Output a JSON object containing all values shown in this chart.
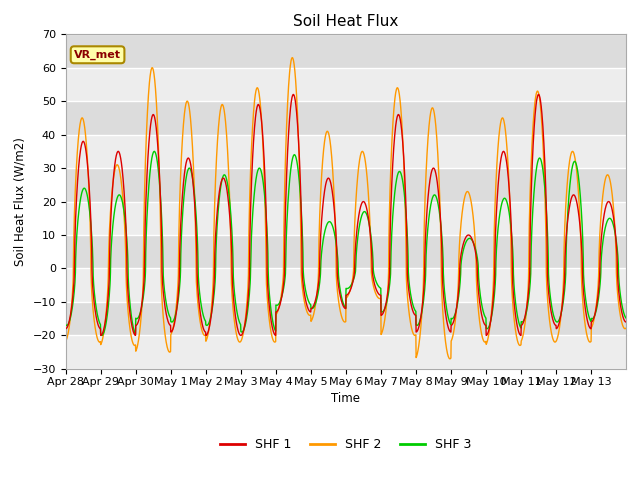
{
  "title": "Soil Heat Flux",
  "ylabel": "Soil Heat Flux (W/m2)",
  "xlabel": "Time",
  "ylim": [
    -30,
    70
  ],
  "yticks": [
    -30,
    -20,
    -10,
    0,
    10,
    20,
    30,
    40,
    50,
    60,
    70
  ],
  "xtick_labels": [
    "Apr 28",
    "Apr 29",
    "Apr 30",
    "May 1",
    "May 2",
    "May 3",
    "May 4",
    "May 5",
    "May 6",
    "May 7",
    "May 8",
    "May 9",
    "May 10",
    "May 11",
    "May 12",
    "May 13"
  ],
  "colors": {
    "SHF1": "#dd0000",
    "SHF2": "#ff9900",
    "SHF3": "#00cc00"
  },
  "legend_labels": [
    "SHF 1",
    "SHF 2",
    "SHF 3"
  ],
  "annotation_text": "VR_met",
  "plot_bg": "#dcdcdc",
  "fig_bg": "#ffffff",
  "figsize": [
    6.4,
    4.8
  ],
  "dpi": 100,
  "shf1_peaks": [
    38,
    35,
    46,
    33,
    27,
    49,
    52,
    27,
    20,
    46,
    30,
    10,
    35,
    52,
    22,
    20
  ],
  "shf2_peaks": [
    45,
    31,
    60,
    50,
    49,
    54,
    63,
    41,
    35,
    54,
    48,
    23,
    45,
    53,
    35,
    28
  ],
  "shf3_peaks": [
    24,
    22,
    35,
    30,
    28,
    30,
    34,
    14,
    17,
    29,
    22,
    9,
    21,
    33,
    32,
    15
  ],
  "shf1_troughs": [
    -18,
    -20,
    -17,
    -19,
    -20,
    -20,
    -13,
    -12,
    -8,
    -14,
    -19,
    -17,
    -20,
    -17,
    -18,
    -16
  ],
  "shf2_troughs": [
    -22,
    -23,
    -25,
    -20,
    -22,
    -22,
    -14,
    -16,
    -9,
    -20,
    -27,
    -22,
    -23,
    -22,
    -22,
    -18
  ],
  "shf3_troughs": [
    -17,
    -20,
    -15,
    -16,
    -17,
    -19,
    -11,
    -12,
    -6,
    -13,
    -17,
    -15,
    -18,
    -16,
    -16,
    -15
  ],
  "n_days": 16,
  "pts_per_day": 144
}
